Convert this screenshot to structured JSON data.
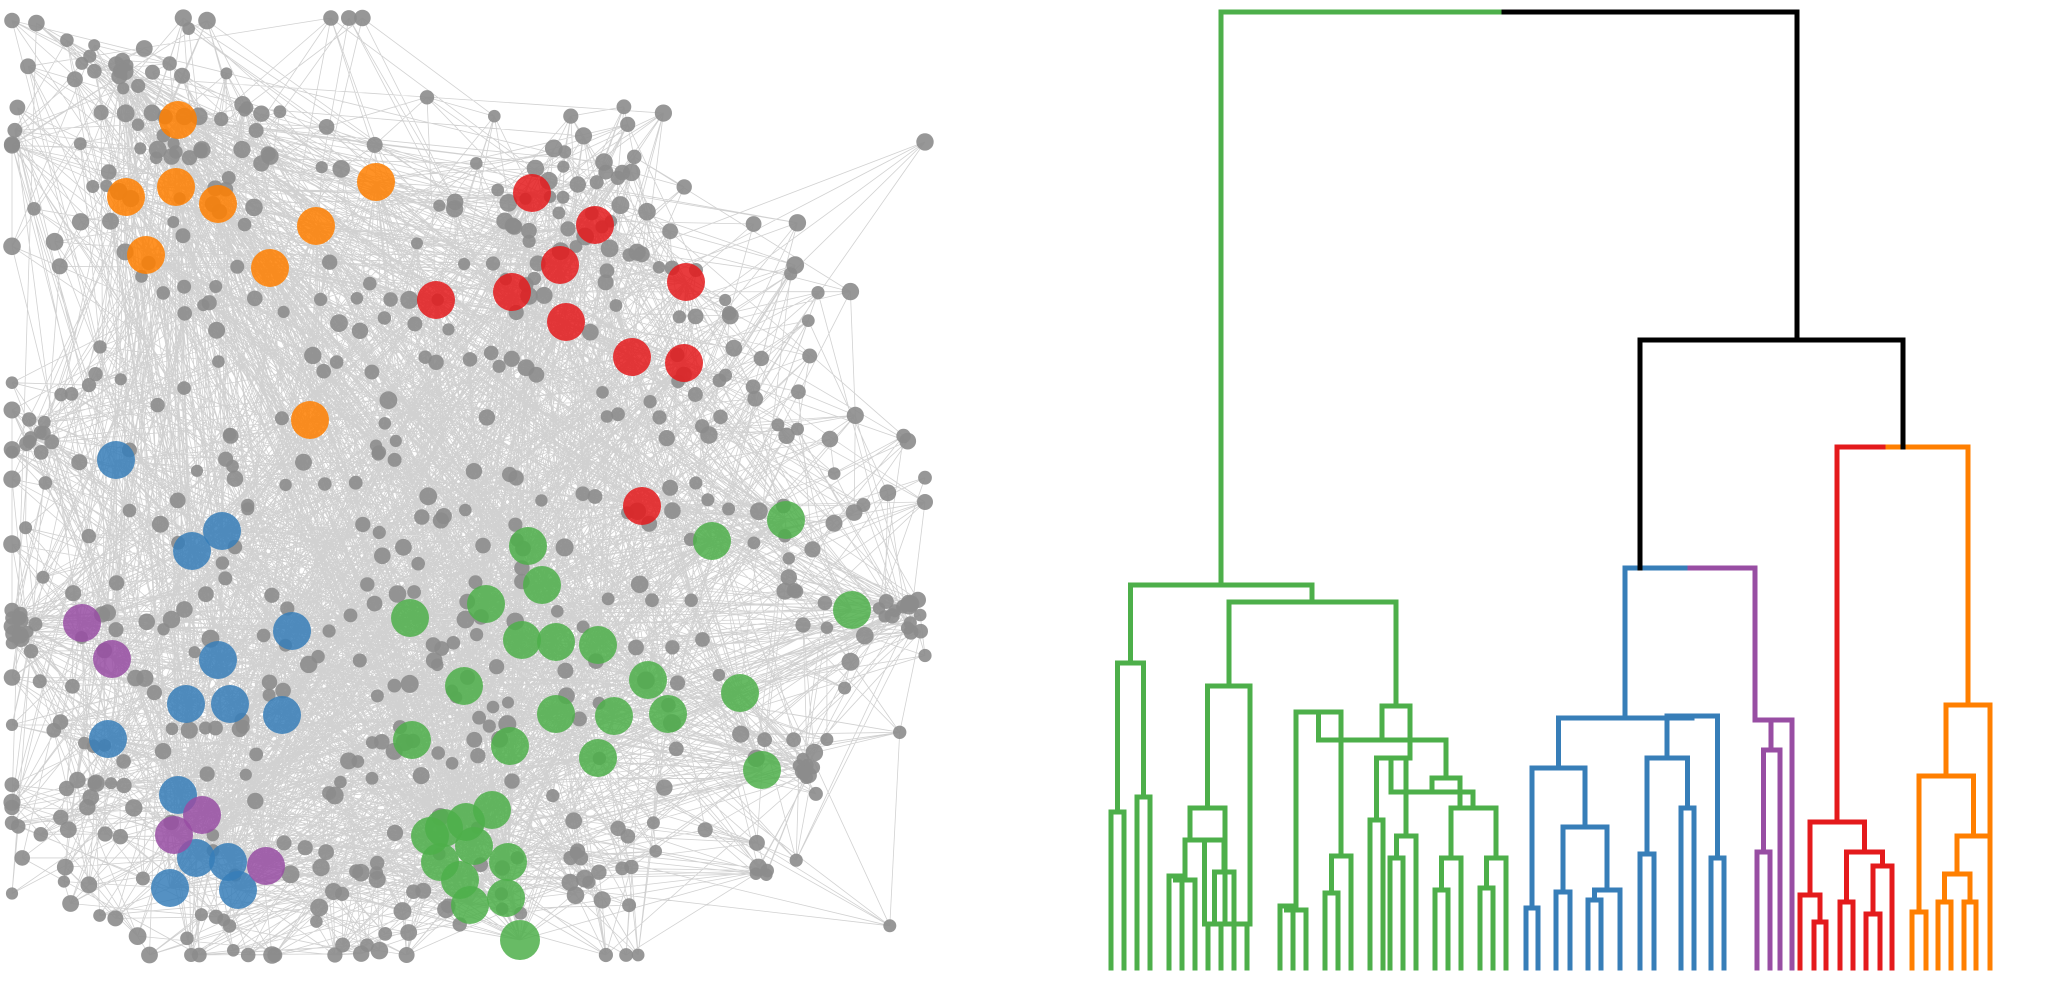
{
  "colors": {
    "green": "#4daf4a",
    "blue": "#377eb8",
    "purple": "#984ea3",
    "red": "#e41a1c",
    "orange": "#ff7f00",
    "black": "#000000",
    "grey_node": "#8c8c8c",
    "grey_edge": "#9a9a9a"
  },
  "network": {
    "communities": [
      "orange",
      "red",
      "blue",
      "purple",
      "green"
    ],
    "grey_node_count": 620,
    "edge_count": 2600
  },
  "dendrogram": {
    "clusters": [
      {
        "color": "green",
        "leaves": 22
      },
      {
        "color": "blue",
        "leaves": 11
      },
      {
        "color": "purple",
        "leaves": 4
      },
      {
        "color": "red",
        "leaves": 8
      },
      {
        "color": "orange",
        "leaves": 7
      }
    ],
    "root_color_split": [
      "green",
      "black"
    ]
  }
}
